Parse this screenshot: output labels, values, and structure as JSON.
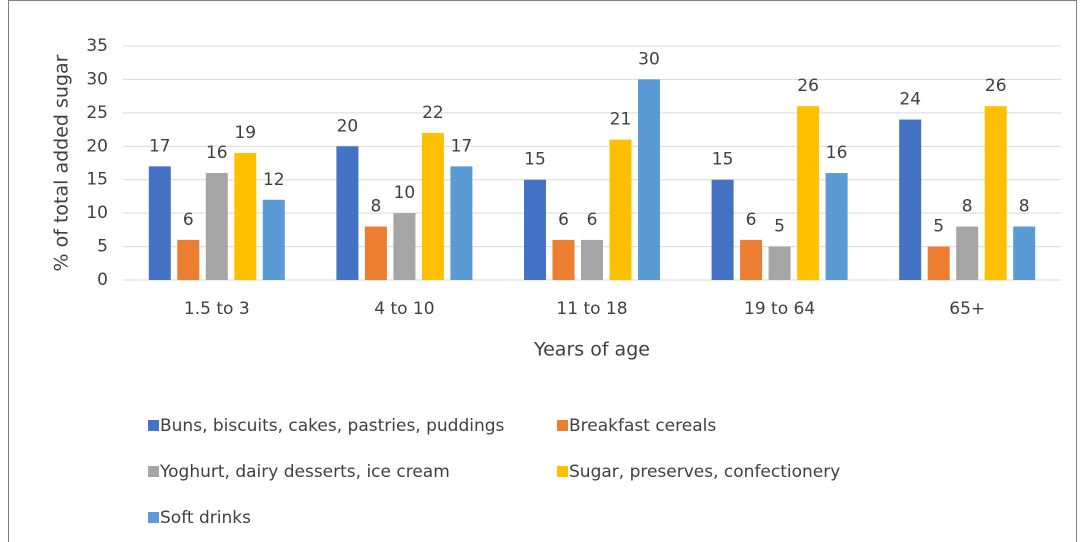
{
  "chart_data": {
    "type": "bar",
    "y_label": "% of total added sugar",
    "x_label": "Years of age",
    "categories": [
      "1.5 to 3",
      "4 to 10",
      "11 to 18",
      "19 to 64",
      "65+"
    ],
    "series": [
      {
        "name": "Buns, biscuits, cakes, pastries, puddings",
        "color": "#4472c4",
        "values": [
          17,
          20,
          15,
          15,
          24
        ]
      },
      {
        "name": "Breakfast cereals",
        "color": "#ed7d31",
        "values": [
          6,
          8,
          6,
          6,
          5
        ]
      },
      {
        "name": "Yoghurt, dairy desserts, ice cream",
        "color": "#a5a5a5",
        "values": [
          16,
          10,
          6,
          5,
          8
        ]
      },
      {
        "name": "Sugar, preserves, confectionery",
        "color": "#ffc000",
        "values": [
          19,
          22,
          21,
          26,
          26
        ]
      },
      {
        "name": "Soft drinks",
        "color": "#5b9bd5",
        "values": [
          12,
          17,
          30,
          16,
          8
        ]
      }
    ],
    "ylim": [
      0,
      35
    ],
    "yticks": [
      0,
      5,
      10,
      15,
      20,
      25,
      30,
      35
    ],
    "grid": true,
    "legend": "bottom"
  }
}
